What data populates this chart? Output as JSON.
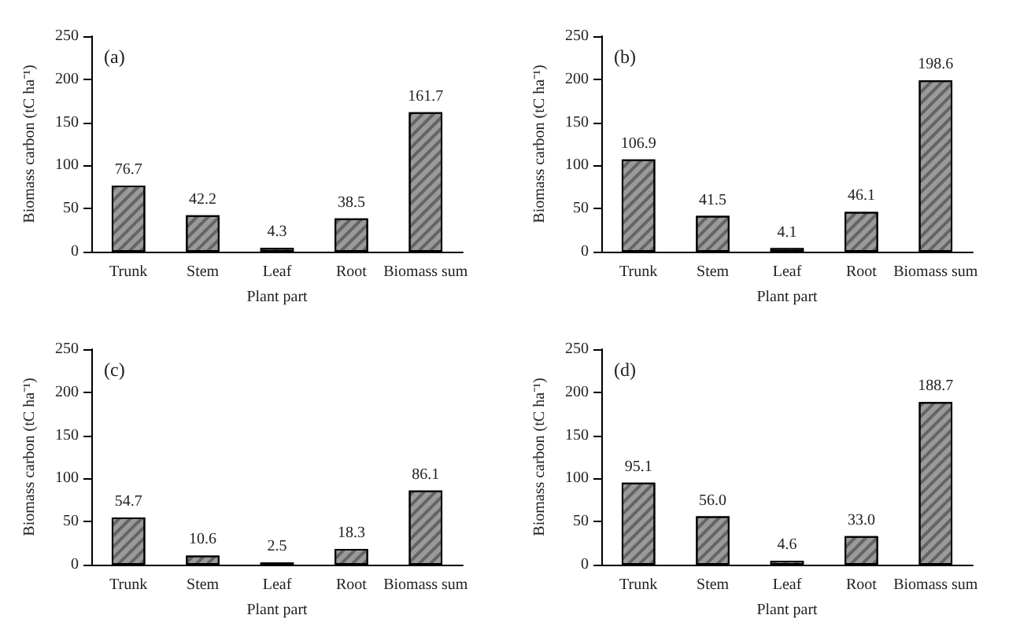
{
  "chart_data": [
    {
      "type": "bar",
      "annotations": [
        "(a)"
      ],
      "xlabel": "Plant part",
      "ylabel": "Biomass carbon (tC ha⁻¹)",
      "categories": [
        "Trunk",
        "Stem",
        "Leaf",
        "Root",
        "Biomass sum"
      ],
      "values": [
        76.7,
        42.2,
        4.3,
        38.5,
        161.7
      ],
      "color": "#9a9a9a",
      "ylim": [
        0,
        250
      ],
      "yticks": [
        0,
        50,
        100,
        150,
        200,
        250
      ],
      "data_labels": true,
      "grid": false
    },
    {
      "type": "bar",
      "annotations": [
        "(b)"
      ],
      "xlabel": "Plant part",
      "ylabel": "Biomass carbon (tC ha⁻¹)",
      "categories": [
        "Trunk",
        "Stem",
        "Leaf",
        "Root",
        "Biomass sum"
      ],
      "values": [
        106.9,
        41.5,
        4.1,
        46.1,
        198.6
      ],
      "color": "#9a9a9a",
      "ylim": [
        0,
        250
      ],
      "yticks": [
        0,
        50,
        100,
        150,
        200,
        250
      ],
      "data_labels": true,
      "grid": false
    },
    {
      "type": "bar",
      "annotations": [
        "(c)"
      ],
      "xlabel": "Plant part",
      "ylabel": "Biomass carbon (tC ha⁻¹)",
      "categories": [
        "Trunk",
        "Stem",
        "Leaf",
        "Root",
        "Biomass sum"
      ],
      "values": [
        54.7,
        10.6,
        2.5,
        18.3,
        86.1
      ],
      "color": "#9a9a9a",
      "ylim": [
        0,
        250
      ],
      "yticks": [
        0,
        50,
        100,
        150,
        200,
        250
      ],
      "data_labels": true,
      "grid": false
    },
    {
      "type": "bar",
      "annotations": [
        "(d)"
      ],
      "xlabel": "Plant part",
      "ylabel": "Biomass carbon (tC ha⁻¹)",
      "categories": [
        "Trunk",
        "Stem",
        "Leaf",
        "Root",
        "Biomass sum"
      ],
      "values": [
        95.1,
        56.0,
        4.6,
        33.0,
        188.7
      ],
      "value_labels": [
        "95.1",
        "56.0",
        "4.6",
        "33.0",
        "188.7"
      ],
      "color": "#9a9a9a",
      "ylim": [
        0,
        250
      ],
      "yticks": [
        0,
        50,
        100,
        150,
        200,
        250
      ],
      "grid": false
    }
  ]
}
